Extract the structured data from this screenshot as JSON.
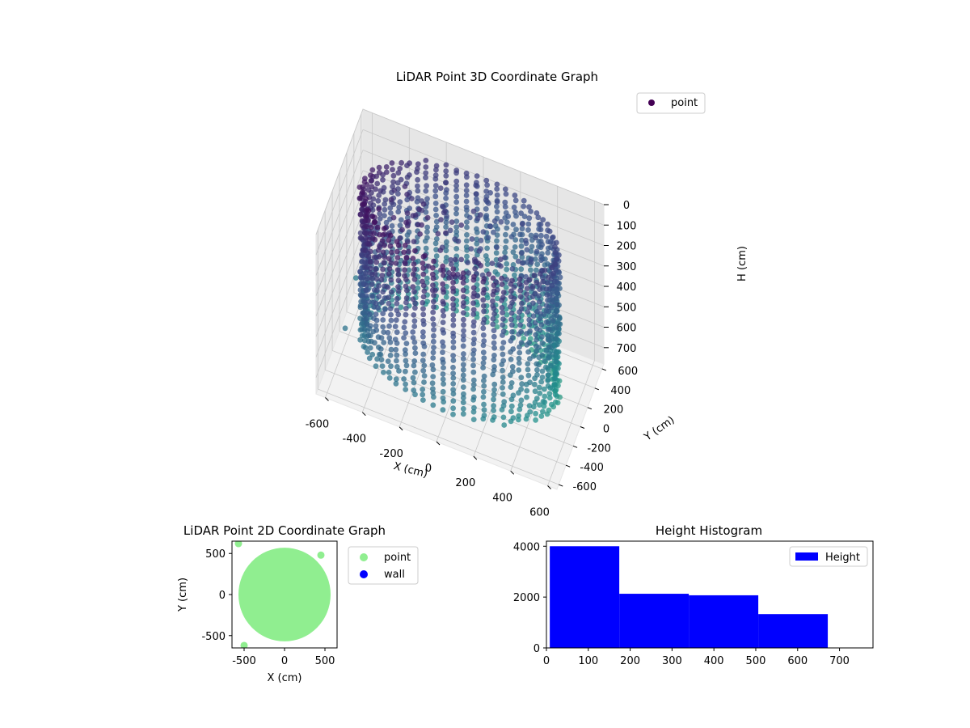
{
  "chart_data": [
    {
      "type": "scatter",
      "projection": "3d",
      "title": "LiDAR Point 3D Coordinate Graph",
      "xlabel": "X (cm)",
      "ylabel": "Y (cm)",
      "zlabel": "H (cm)",
      "xlim": [
        -650,
        650
      ],
      "ylim": [
        -650,
        650
      ],
      "zlim": [
        780,
        0
      ],
      "x_ticks": [
        -600,
        -400,
        -200,
        0,
        200,
        400,
        600
      ],
      "y_ticks": [
        -600,
        -400,
        -200,
        0,
        200,
        400,
        600
      ],
      "z_ticks": [
        0,
        100,
        200,
        300,
        400,
        500,
        600,
        700
      ],
      "legend": [
        "point"
      ],
      "legend_position": "top-right",
      "colormap": "viridis",
      "colormap_colors": [
        "#440154",
        "#3b528b",
        "#21918c",
        "#5ec962"
      ],
      "grid": true,
      "series": [
        {
          "name": "point",
          "shape": "cylindrical scan",
          "radius": 520,
          "height_range": [
            0,
            700
          ],
          "outliers": [
            {
              "x": -620,
              "y": 300,
              "h": 650
            },
            {
              "x": -600,
              "y": -100,
              "h": 700
            },
            {
              "x": -560,
              "y": 350,
              "h": 420
            },
            {
              "x": -520,
              "y": 100,
              "h": 620
            },
            {
              "x": -450,
              "y": -200,
              "h": 600
            },
            {
              "x": -300,
              "y": 300,
              "h": 520
            }
          ]
        }
      ]
    },
    {
      "type": "scatter",
      "title": "LiDAR Point 2D Coordinate Graph",
      "xlabel": "X (cm)",
      "ylabel": "Y (cm)",
      "xlim": [
        -650,
        650
      ],
      "ylim": [
        -650,
        650
      ],
      "x_ticks": [
        -500,
        0,
        500
      ],
      "y_ticks": [
        -500,
        0,
        500
      ],
      "legend_position": "outside-right",
      "series": [
        {
          "name": "point",
          "color": "#90ee90",
          "shape": "filled disk",
          "radius": 570
        },
        {
          "name": "wall",
          "color": "#0000ff",
          "points": []
        }
      ]
    },
    {
      "type": "bar",
      "title": "Height Histogram",
      "legend": [
        "Height"
      ],
      "legend_position": "top-right",
      "bin_edges": [
        8,
        174,
        340,
        506,
        672
      ],
      "values": [
        4000,
        2130,
        2070,
        1330
      ],
      "xlim": [
        0,
        780
      ],
      "ylim": [
        0,
        4200
      ],
      "x_ticks": [
        0,
        100,
        200,
        300,
        400,
        500,
        600,
        700
      ],
      "y_ticks": [
        0,
        2000,
        4000
      ],
      "bar_color": "#0000ff",
      "series": [
        {
          "name": "Height",
          "values": [
            4000,
            2130,
            2070,
            1330
          ]
        }
      ]
    }
  ]
}
